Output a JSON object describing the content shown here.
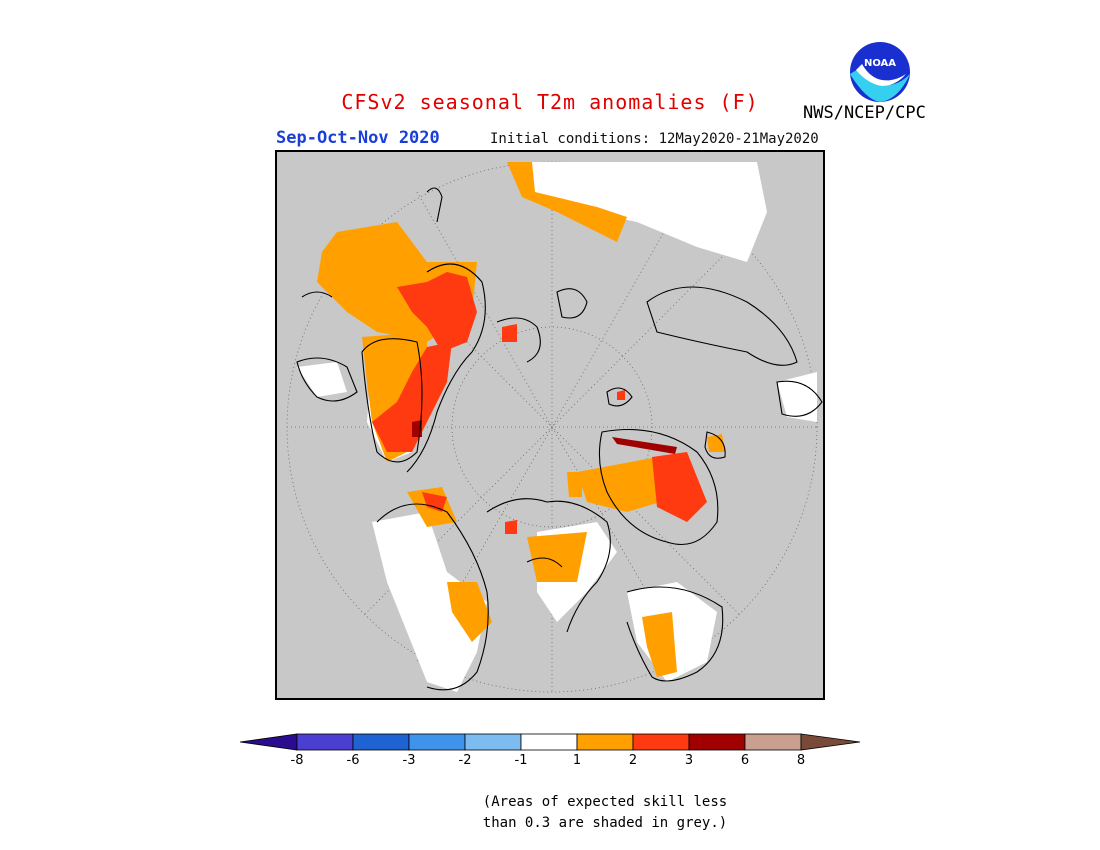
{
  "title": "CFSv2 seasonal T2m anomalies (F)",
  "season": "Sep-Oct-Nov 2020",
  "initial_conditions": "Initial conditions: 12May2020-21May2020",
  "organization": "NWS/NCEP/CPC",
  "logo_text": "NOAA",
  "colorbar": {
    "ticks": [
      "-8",
      "-6",
      "-3",
      "-2",
      "-1",
      "1",
      "2",
      "3",
      "6",
      "8"
    ],
    "colors": [
      "#2a0d8f",
      "#4a3fd0",
      "#1f63d2",
      "#3f93ea",
      "#7dbcf0",
      "#ffffff",
      "#ffa000",
      "#ff3a10",
      "#a00000",
      "#c9a090",
      "#7a4a38"
    ]
  },
  "note_line1": "(Areas of expected skill less",
  "note_line2": "than 0.3 are shaded in grey.)",
  "colors": {
    "background_grey": "#c8c8c8",
    "anom_1_2": "#ffa000",
    "anom_2_3": "#ff3a10",
    "anom_3_6": "#a00000",
    "neutral": "#ffffff"
  }
}
